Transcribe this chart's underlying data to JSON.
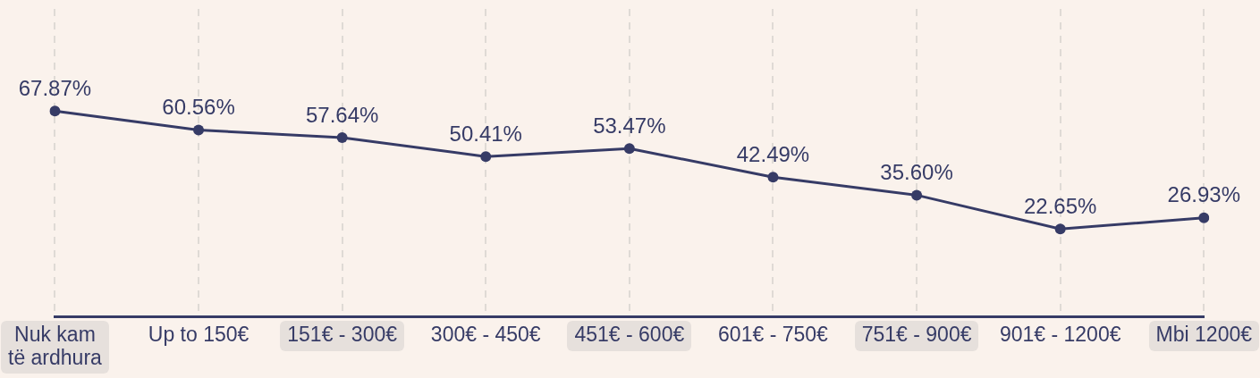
{
  "chart_data": {
    "type": "line",
    "categories": [
      "Nuk kam të ardhura",
      "Up to 150€",
      "151€ - 300€",
      "300€ - 450€",
      "451€ - 600€",
      "601€ - 750€",
      "751€ - 900€",
      "901€ - 1200€",
      "Mbi 1200€"
    ],
    "values": [
      67.87,
      60.56,
      57.64,
      50.41,
      53.47,
      42.49,
      35.6,
      22.65,
      26.93
    ],
    "value_labels": [
      "67.87%",
      "60.56%",
      "57.64%",
      "50.41%",
      "53.47%",
      "42.49%",
      "35.60%",
      "22.65%",
      "26.93%"
    ],
    "color": "#363b66",
    "ylim": [
      -11,
      107
    ],
    "grid": "x",
    "tick_labels": "x",
    "marker": "circle",
    "line_style": "solid"
  }
}
